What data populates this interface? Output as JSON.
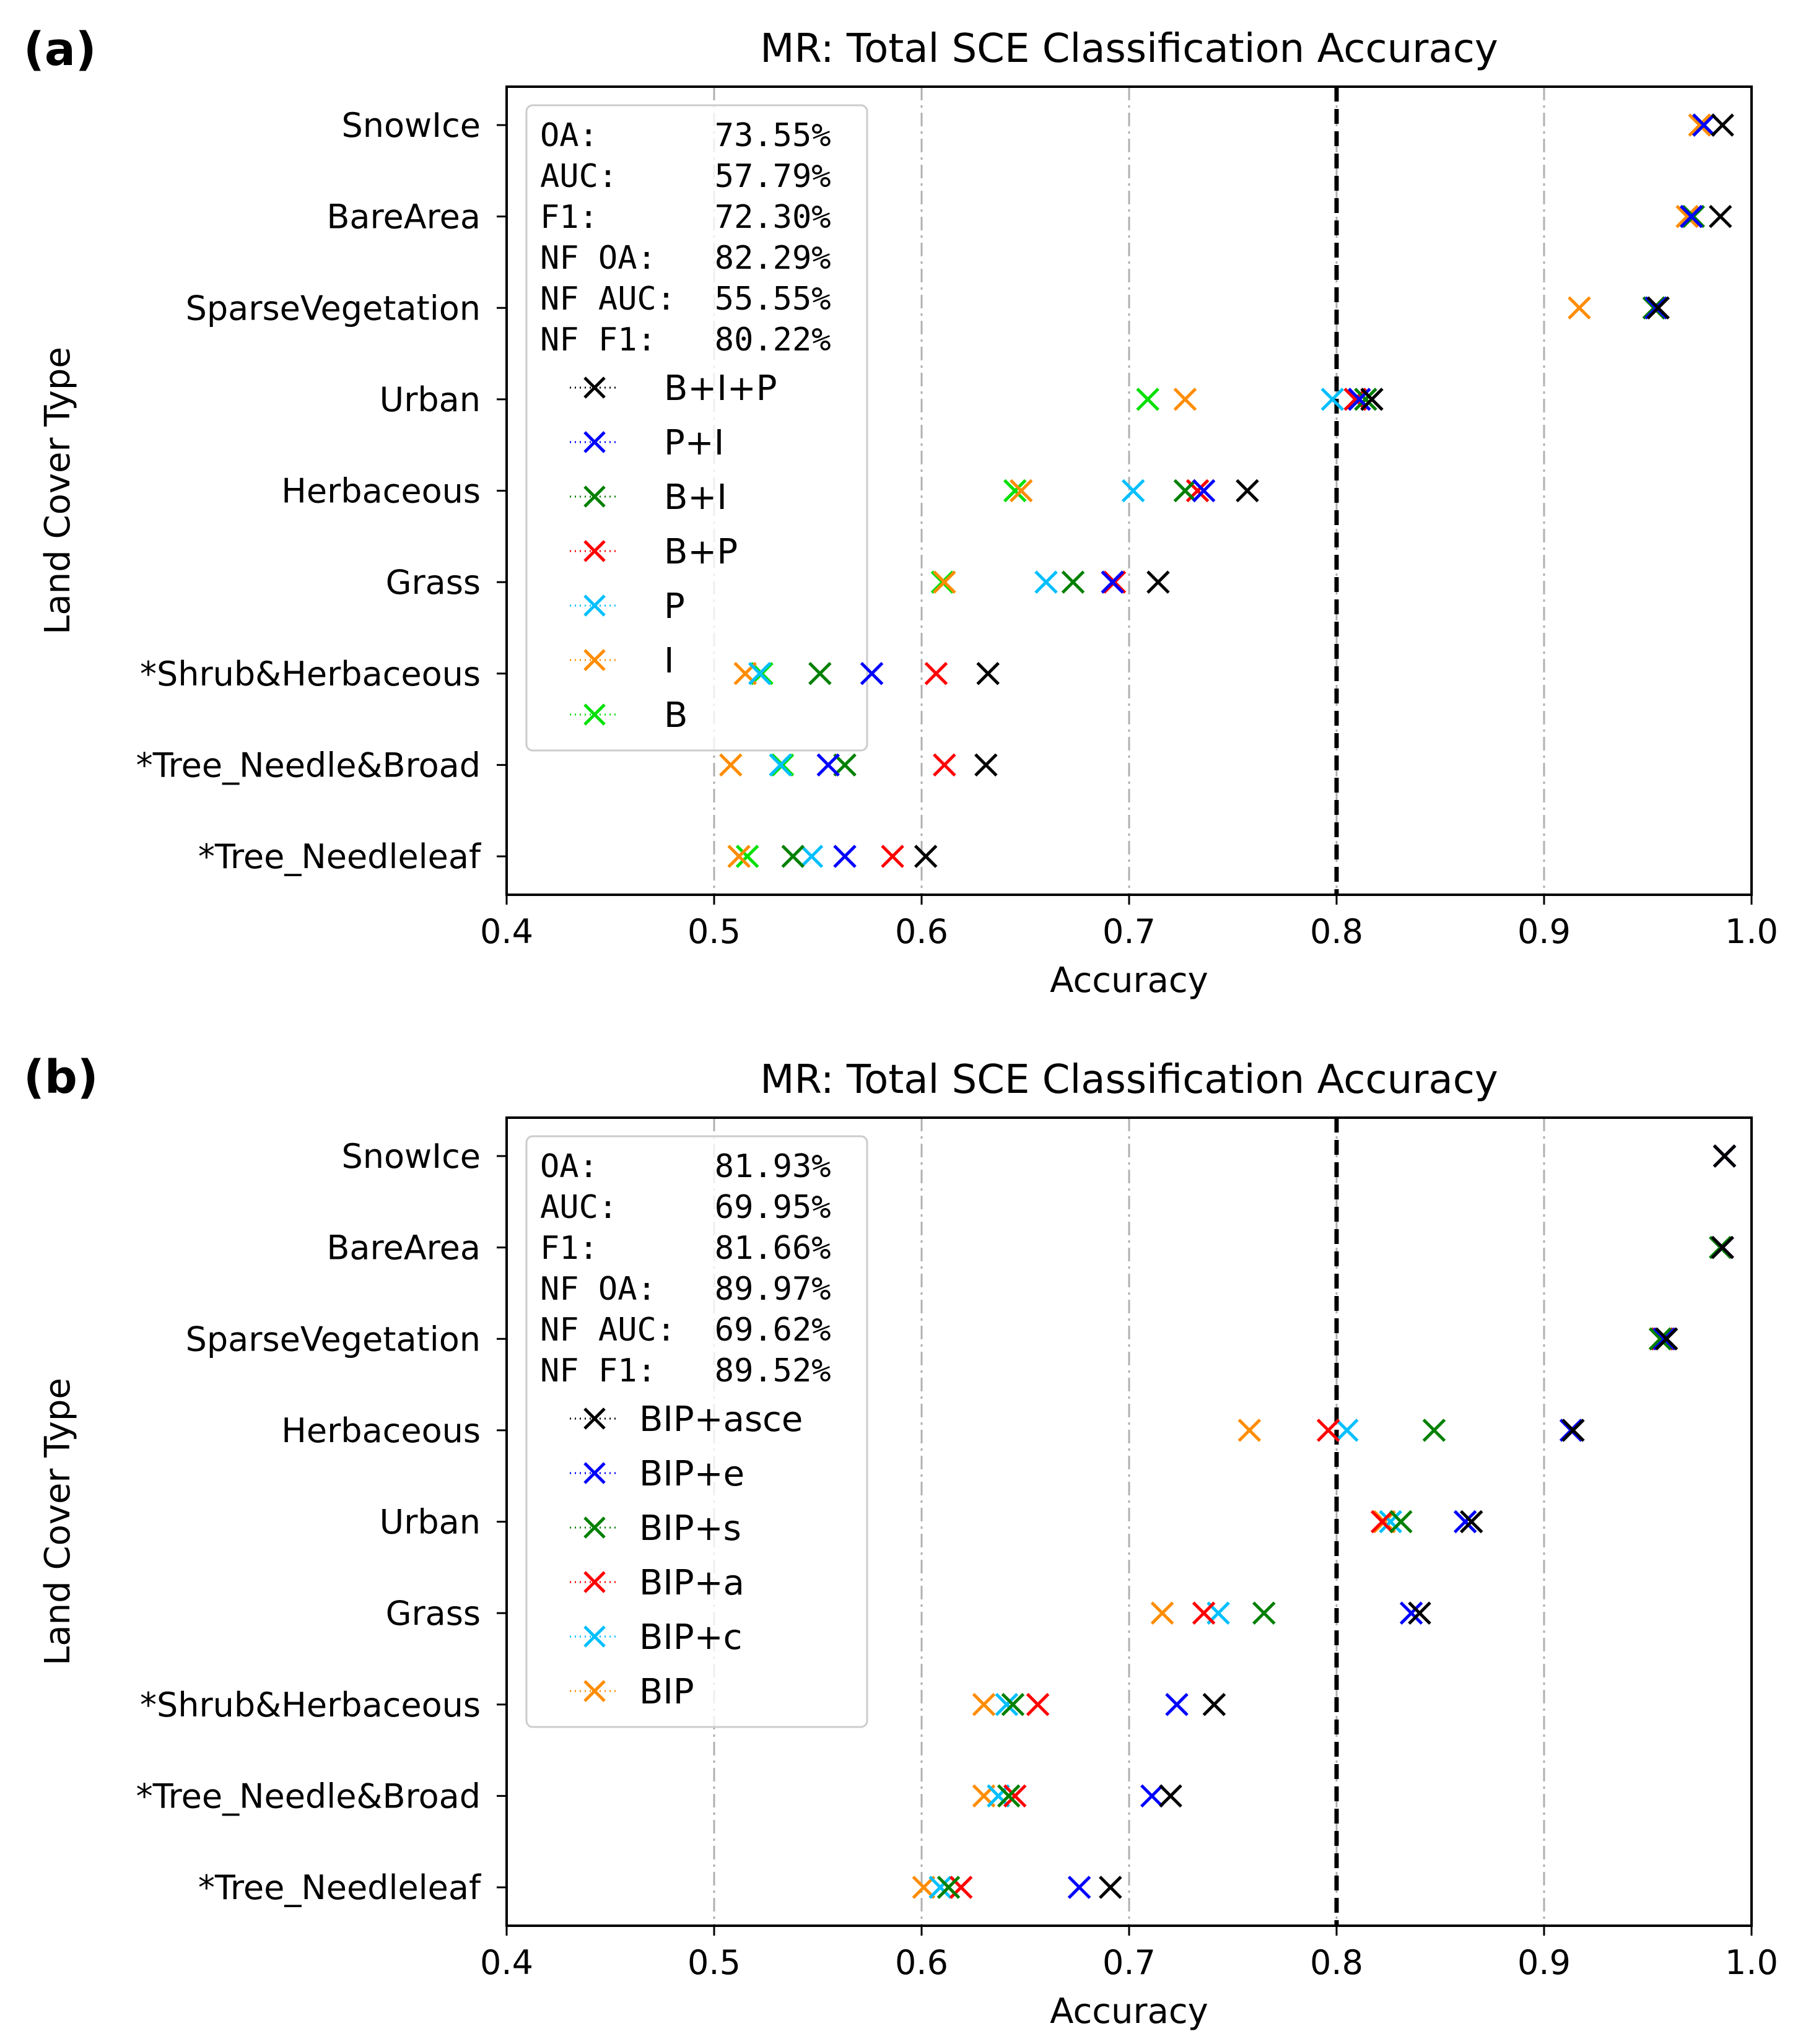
{
  "chart_data": [
    {
      "panel_label": "(a)",
      "type": "scatter",
      "title": "MR: Total SCE Classification Accuracy",
      "xlabel": "Accuracy",
      "ylabel": "Land Cover Type",
      "xlim": [
        0.4,
        1.0
      ],
      "xticks": [
        "0.4",
        "0.5",
        "0.6",
        "0.7",
        "0.8",
        "0.9",
        "1.0"
      ],
      "reference_line": 0.8,
      "categories": [
        "SnowIce",
        "BareArea",
        "SparseVegetation",
        "Urban",
        "Herbaceous",
        "Grass",
        "*Shrub&Herbaceous",
        "*Tree_Needle&Broad",
        "*Tree_Needleleaf"
      ],
      "stats": [
        "OA:      73.55%",
        "AUC:     57.79%",
        "F1:      72.30%",
        "NF OA:   82.29%",
        "NF AUC:  55.55%",
        "NF F1:   80.22%"
      ],
      "series": [
        {
          "name": "B+I+P",
          "color": "#000000",
          "values": [
            0.986,
            0.985,
            0.955,
            0.817,
            0.757,
            0.714,
            0.632,
            0.631,
            0.602
          ]
        },
        {
          "name": "P+I",
          "color": "#0000ff",
          "values": [
            0.977,
            0.971,
            0.954,
            0.811,
            0.736,
            0.692,
            0.576,
            0.555,
            0.563
          ]
        },
        {
          "name": "B+I",
          "color": "#008000",
          "values": [
            0.977,
            0.972,
            0.953,
            0.814,
            0.727,
            0.673,
            0.551,
            0.563,
            0.538
          ]
        },
        {
          "name": "B+P",
          "color": "#ff0000",
          "values": [
            0.977,
            0.971,
            0.953,
            0.809,
            0.733,
            0.693,
            0.607,
            0.611,
            0.586
          ]
        },
        {
          "name": "P",
          "color": "#00bfff",
          "values": [
            0.977,
            0.971,
            0.953,
            0.798,
            0.702,
            0.66,
            0.522,
            0.532,
            0.547
          ]
        },
        {
          "name": "I",
          "color": "#ff8c00",
          "values": [
            0.975,
            0.969,
            0.917,
            0.727,
            0.648,
            0.611,
            0.515,
            0.508,
            0.512
          ]
        },
        {
          "name": "B",
          "color": "#00e000",
          "values": [
            0.977,
            0.971,
            0.953,
            0.709,
            0.645,
            0.61,
            0.523,
            0.533,
            0.516
          ]
        }
      ]
    },
    {
      "panel_label": "(b)",
      "type": "scatter",
      "title": "MR: Total SCE Classification Accuracy",
      "xlabel": "Accuracy",
      "ylabel": "Land Cover Type",
      "xlim": [
        0.4,
        1.0
      ],
      "xticks": [
        "0.4",
        "0.5",
        "0.6",
        "0.7",
        "0.8",
        "0.9",
        "1.0"
      ],
      "reference_line": 0.8,
      "categories": [
        "SnowIce",
        "BareArea",
        "SparseVegetation",
        "Herbaceous",
        "Urban",
        "Grass",
        "*Shrub&Herbaceous",
        "*Tree_Needle&Broad",
        "*Tree_Needleleaf"
      ],
      "stats": [
        "OA:      81.93%",
        "AUC:     69.95%",
        "F1:      81.66%",
        "NF OA:   89.97%",
        "NF AUC:  69.62%",
        "NF F1:   89.52%"
      ],
      "series": [
        {
          "name": "BIP+asce",
          "color": "#000000",
          "values": [
            0.987,
            0.986,
            0.959,
            0.914,
            0.865,
            0.84,
            0.741,
            0.72,
            0.691
          ]
        },
        {
          "name": "BIP+e",
          "color": "#0000ff",
          "values": [
            0.987,
            0.986,
            0.958,
            0.913,
            0.862,
            0.836,
            0.723,
            0.711,
            0.676
          ]
        },
        {
          "name": "BIP+s",
          "color": "#008000",
          "values": [
            0.987,
            0.985,
            0.956,
            0.847,
            0.831,
            0.765,
            0.644,
            0.642,
            0.613
          ]
        },
        {
          "name": "BIP+a",
          "color": "#ff0000",
          "values": [
            0.987,
            0.986,
            0.957,
            0.796,
            0.822,
            0.736,
            0.656,
            0.645,
            0.619
          ]
        },
        {
          "name": "BIP+c",
          "color": "#00bfff",
          "values": [
            0.987,
            0.986,
            0.957,
            0.805,
            0.826,
            0.743,
            0.641,
            0.637,
            0.609
          ]
        },
        {
          "name": "BIP",
          "color": "#ff8c00",
          "values": [
            0.987,
            0.986,
            0.956,
            0.758,
            0.823,
            0.716,
            0.63,
            0.63,
            0.601
          ]
        }
      ]
    }
  ]
}
